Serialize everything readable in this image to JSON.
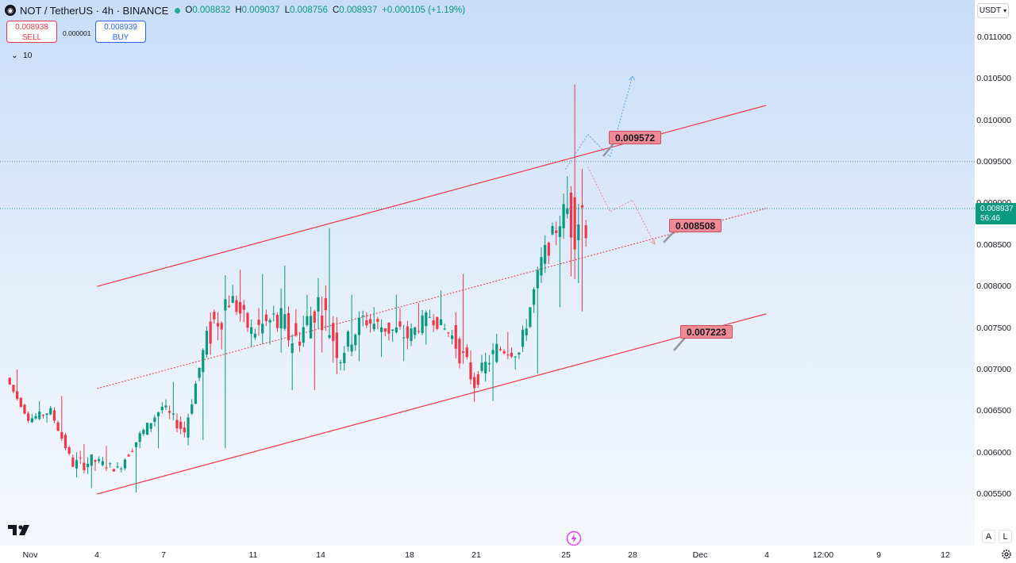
{
  "header": {
    "symbol_title": "NOT / TetherUS · 4h · BINANCE",
    "open_key": "O",
    "open": "0.008832",
    "high_key": "H",
    "high": "0.009037",
    "low_key": "L",
    "low": "0.008756",
    "close_key": "C",
    "close": "0.008937",
    "change": "+0.000105 (+1.19%)"
  },
  "trade": {
    "sell_price": "0.008938",
    "sell_label": "SELL",
    "spread": "0.000001",
    "buy_price": "0.008939",
    "buy_label": "BUY"
  },
  "volume_toggle": {
    "value": "10"
  },
  "currency_button": {
    "label": "USDT"
  },
  "price_tag": {
    "last": "0.008937",
    "countdown": "56:46"
  },
  "annotations": {
    "upper": "0.009572",
    "middle": "0.008508",
    "lower": "0.007223"
  },
  "axis_buttons": {
    "auto": "A",
    "log": "L"
  },
  "colors": {
    "up": "#089981",
    "down": "#f23645",
    "channel": "#f23645",
    "forecast_up": "#5aa9e6",
    "forecast_down": "#f28a96",
    "label_bg": "#f28a96"
  },
  "chart_data": {
    "type": "candlestick",
    "symbol": "NOT / TetherUS",
    "interval": "4h",
    "exchange": "BINANCE",
    "y_ticks": [
      "0.011000",
      "0.010500",
      "0.010000",
      "0.009500",
      "0.009000",
      "0.008500",
      "0.008000",
      "0.007500",
      "0.007000",
      "0.006500",
      "0.006000",
      "0.005500"
    ],
    "ylim": [
      0.00528,
      0.01148
    ],
    "x_ticks": [
      "Nov",
      "4",
      "7",
      "11",
      "14",
      "18",
      "21",
      "25",
      "28",
      "Dec",
      "4",
      "12:00",
      "9",
      "12"
    ],
    "last_price": 0.008937,
    "horizontal_lines": [
      0.009503,
      0.008937
    ],
    "channel_upper": {
      "from": [
        "Nov 4",
        0.008
      ],
      "to": [
        "Dec 4",
        0.01018
      ]
    },
    "channel_mid": {
      "from": [
        "Nov 4",
        0.00677
      ],
      "to": [
        "Dec 4",
        0.00894
      ]
    },
    "channel_lower": {
      "from": [
        "Nov 4",
        0.0055
      ],
      "to": [
        "Dec 4",
        0.00767
      ]
    },
    "forecast_up": [
      [
        "Nov 25",
        0.00941
      ],
      [
        "Nov 26",
        0.00983
      ],
      [
        "Nov 27",
        0.00956
      ],
      [
        "Nov 28",
        0.01053
      ]
    ],
    "forecast_down": [
      [
        "Nov 26",
        0.00944
      ],
      [
        "Nov 27",
        0.0089
      ],
      [
        "Nov 28",
        0.00904
      ],
      [
        "Nov 29",
        0.00851
      ]
    ],
    "ohlc_anchors": [
      [
        "Oct 31",
        0.00695,
        0.007,
        0.00688,
        0.0069
      ],
      [
        "Nov 1",
        0.0065,
        0.00662,
        0.00636,
        0.0064
      ],
      [
        "Nov 2",
        0.0066,
        0.00668,
        0.00645,
        0.0065
      ],
      [
        "Nov 3",
        0.006,
        0.0061,
        0.00557,
        0.00585
      ],
      [
        "Nov 4",
        0.00598,
        0.00608,
        0.0058,
        0.0059
      ],
      [
        "Nov 5",
        0.00575,
        0.0059,
        0.00552,
        0.0058
      ],
      [
        "Nov 6",
        0.00625,
        0.00635,
        0.00605,
        0.0062
      ],
      [
        "Nov 7",
        0.00668,
        0.00685,
        0.00645,
        0.00655
      ],
      [
        "Nov 8",
        0.00645,
        0.0066,
        0.00615,
        0.00625
      ],
      [
        "Nov 9",
        0.00735,
        0.00758,
        0.00605,
        0.0074
      ],
      [
        "Nov 10",
        0.0078,
        0.0082,
        0.00745,
        0.0079
      ],
      [
        "Nov 11",
        0.00765,
        0.00815,
        0.0073,
        0.00745
      ],
      [
        "Nov 12",
        0.00725,
        0.00825,
        0.00675,
        0.0076
      ],
      [
        "Nov 13",
        0.00748,
        0.0079,
        0.00675,
        0.00735
      ],
      [
        "Nov 14",
        0.0081,
        0.0087,
        0.0074,
        0.0078
      ],
      [
        "Nov 15",
        0.00755,
        0.0079,
        0.0071,
        0.0072
      ],
      [
        "Nov 16",
        0.00745,
        0.00775,
        0.00715,
        0.0076
      ],
      [
        "Nov 17",
        0.00745,
        0.0079,
        0.0071,
        0.0075
      ],
      [
        "Nov 18",
        0.00755,
        0.0078,
        0.0073,
        0.0074
      ],
      [
        "Nov 19",
        0.0077,
        0.00795,
        0.0075,
        0.00765
      ],
      [
        "Nov 20",
        0.0076,
        0.00815,
        0.0073,
        0.0074
      ],
      [
        "Nov 21",
        0.007,
        0.0072,
        0.00662,
        0.00685
      ],
      [
        "Nov 22",
        0.00735,
        0.00745,
        0.007,
        0.00725
      ],
      [
        "Nov 23",
        0.0073,
        0.00755,
        0.00695,
        0.0072
      ],
      [
        "Nov 24",
        0.008,
        0.0085,
        0.00775,
        0.0083
      ],
      [
        "Nov 25",
        0.0092,
        0.01043,
        0.0077,
        0.0089
      ],
      [
        "Nov 26",
        0.00893,
        0.00904,
        0.00875,
        0.00894
      ]
    ]
  }
}
